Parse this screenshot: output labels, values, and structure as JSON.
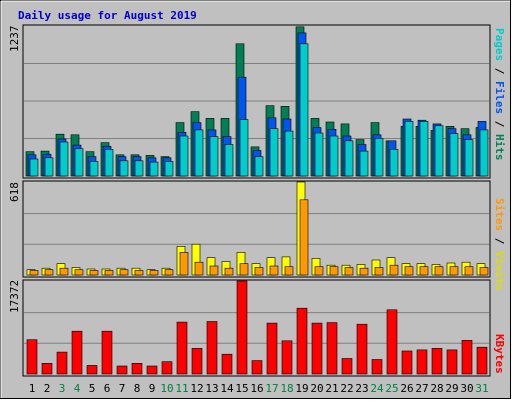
{
  "chart_data": [
    {
      "type": "bar",
      "title": "Daily usage for August 2019",
      "ymax_label": "1237",
      "y_axis_label": {
        "pages": "Pages",
        "sep1": " / ",
        "files": "Files",
        "sep2": " / ",
        "hits": "Hits"
      },
      "categories": [
        "1",
        "2",
        "3",
        "4",
        "5",
        "6",
        "7",
        "8",
        "9",
        "10",
        "11",
        "12",
        "13",
        "14",
        "15",
        "16",
        "17",
        "18",
        "19",
        "20",
        "21",
        "22",
        "23",
        "24",
        "25",
        "26",
        "27",
        "28",
        "29",
        "30",
        "31"
      ],
      "weekend_days": [
        "3",
        "4",
        "10",
        "11",
        "17",
        "18",
        "24",
        "25",
        "31"
      ],
      "ylim": [
        0,
        1237
      ],
      "series": [
        {
          "name": "Hits",
          "color": "#00cccc",
          "values": [
            200,
            205,
            345,
            340,
            200,
            275,
            175,
            175,
            170,
            160,
            440,
            530,
            475,
            475,
            1090,
            240,
            580,
            575,
            1230,
            475,
            445,
            430,
            300,
            440,
            290,
            410,
            410,
            375,
            410,
            390,
            400
          ]
        },
        {
          "name": "Files",
          "color": "#0055ee",
          "values": [
            175,
            180,
            305,
            255,
            160,
            245,
            160,
            160,
            150,
            150,
            360,
            440,
            380,
            325,
            815,
            210,
            480,
            470,
            1180,
            400,
            385,
            330,
            260,
            340,
            290,
            470,
            460,
            430,
            390,
            340,
            450
          ]
        },
        {
          "name": "Pages",
          "color": "#00cccc",
          "values": [
            140,
            150,
            280,
            225,
            120,
            220,
            125,
            125,
            115,
            120,
            330,
            380,
            325,
            260,
            465,
            160,
            390,
            370,
            1090,
            355,
            330,
            290,
            205,
            310,
            220,
            450,
            450,
            415,
            350,
            300,
            380
          ]
        }
      ]
    },
    {
      "type": "bar",
      "ymax_label": "618",
      "y_axis_label": {
        "sites": "Sites",
        "sep": " / ",
        "visits": "Visits"
      },
      "categories": [
        "1",
        "2",
        "3",
        "4",
        "5",
        "6",
        "7",
        "8",
        "9",
        "10",
        "11",
        "12",
        "13",
        "14",
        "15",
        "16",
        "17",
        "18",
        "19",
        "20",
        "21",
        "22",
        "23",
        "24",
        "25",
        "26",
        "27",
        "28",
        "29",
        "30",
        "31"
      ],
      "ylim": [
        0,
        618
      ],
      "series": [
        {
          "name": "Visits",
          "color": "#ffff00",
          "values": [
            35,
            45,
            75,
            50,
            40,
            40,
            45,
            45,
            35,
            45,
            190,
            205,
            115,
            90,
            150,
            75,
            115,
            120,
            618,
            110,
            65,
            65,
            70,
            100,
            115,
            75,
            75,
            70,
            80,
            85,
            75
          ]
        },
        {
          "name": "Sites",
          "color": "#ff9900",
          "values": [
            30,
            35,
            45,
            35,
            30,
            30,
            35,
            30,
            30,
            35,
            150,
            85,
            60,
            45,
            75,
            50,
            60,
            55,
            500,
            55,
            55,
            50,
            45,
            50,
            65,
            55,
            55,
            55,
            55,
            55,
            50
          ]
        }
      ]
    },
    {
      "type": "bar",
      "ymax_label": "17372",
      "y_axis_label": {
        "kbytes": "KBytes"
      },
      "categories": [
        "1",
        "2",
        "3",
        "4",
        "5",
        "6",
        "7",
        "8",
        "9",
        "10",
        "11",
        "12",
        "13",
        "14",
        "15",
        "16",
        "17",
        "18",
        "19",
        "20",
        "21",
        "22",
        "23",
        "24",
        "25",
        "26",
        "27",
        "28",
        "29",
        "30",
        "31"
      ],
      "ylim": [
        0,
        17372
      ],
      "series": [
        {
          "name": "KBytes",
          "color": "#ff0000",
          "values": [
            6400,
            2000,
            4100,
            8000,
            1600,
            8000,
            1500,
            2000,
            1500,
            2300,
            9700,
            4800,
            9800,
            3700,
            17372,
            2500,
            9500,
            6200,
            12300,
            9500,
            9600,
            2900,
            9300,
            2700,
            12000,
            4300,
            4500,
            4800,
            4500,
            6300,
            5000
          ]
        }
      ]
    }
  ]
}
